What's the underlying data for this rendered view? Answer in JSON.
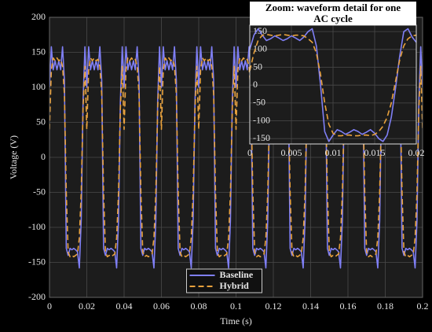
{
  "chart_data": [
    {
      "type": "line",
      "xlabel": "Time (s)",
      "ylabel": "Voltage (V)",
      "xlim": [
        0,
        0.2
      ],
      "ylim": [
        -200,
        200
      ],
      "xticks": [
        0,
        0.02,
        0.04,
        0.06,
        0.08,
        0.1,
        0.12,
        0.14,
        0.16,
        0.18,
        0.2
      ],
      "yticks": [
        -200,
        -150,
        -100,
        -50,
        0,
        50,
        100,
        150,
        200
      ],
      "grid": true,
      "legend": "lower center",
      "x": [
        0,
        0.001,
        0.002,
        0.003,
        0.004,
        0.005,
        0.006,
        0.007,
        0.008,
        0.009,
        0.01,
        0.011,
        0.012,
        0.013,
        0.014,
        0.015,
        0.016,
        0.017,
        0.018,
        0.019,
        0.02,
        0.021,
        0.022,
        0.023,
        0.024,
        0.025,
        0.026,
        0.027,
        0.028,
        0.029,
        0.03,
        0.031,
        0.032,
        0.033,
        0.034,
        0.035,
        0.036,
        0.037,
        0.038,
        0.039,
        0.04,
        0.041,
        0.042,
        0.043,
        0.044,
        0.045,
        0.046,
        0.047,
        0.048,
        0.049,
        0.05,
        0.051,
        0.052,
        0.053,
        0.054,
        0.055,
        0.056,
        0.057,
        0.058,
        0.059,
        0.06,
        0.061,
        0.062,
        0.063,
        0.064,
        0.065,
        0.066,
        0.067,
        0.068,
        0.069,
        0.07,
        0.071,
        0.072,
        0.073,
        0.074,
        0.075,
        0.076,
        0.077,
        0.078,
        0.079,
        0.08,
        0.081,
        0.082,
        0.083,
        0.084,
        0.085,
        0.086,
        0.087,
        0.088,
        0.089,
        0.09,
        0.091,
        0.092,
        0.093,
        0.094,
        0.095,
        0.096,
        0.097,
        0.098,
        0.099,
        0.1,
        0.101,
        0.102,
        0.103,
        0.104,
        0.105,
        0.106,
        0.107,
        0.108,
        0.109,
        0.11,
        0.111,
        0.112,
        0.113,
        0.114,
        0.115,
        0.116,
        0.117,
        0.118,
        0.119,
        0.12,
        0.121,
        0.122,
        0.123,
        0.124,
        0.125,
        0.126,
        0.127,
        0.128,
        0.129,
        0.13,
        0.131,
        0.132,
        0.133,
        0.134,
        0.135,
        0.136,
        0.137,
        0.138,
        0.139,
        0.14,
        0.141,
        0.142,
        0.143,
        0.144,
        0.145,
        0.146,
        0.147,
        0.148,
        0.149,
        0.15,
        0.151,
        0.152,
        0.153,
        0.154,
        0.155,
        0.156,
        0.157,
        0.158,
        0.159,
        0.16,
        0.161,
        0.162,
        0.163,
        0.164,
        0.165,
        0.166,
        0.167,
        0.168,
        0.169,
        0.17,
        0.171,
        0.172,
        0.173,
        0.174,
        0.175,
        0.176,
        0.177,
        0.178,
        0.179,
        0.18,
        0.181,
        0.182,
        0.183,
        0.184,
        0.185,
        0.186,
        0.187,
        0.188,
        0.189,
        0.19,
        0.191,
        0.192,
        0.193,
        0.194,
        0.195,
        0.196,
        0.197,
        0.198,
        0.199,
        0.2
      ],
      "series": [
        {
          "name": "Baseline",
          "color": "#7f7ff5",
          "dash": false,
          "values": [
            100,
            158,
            125,
            138,
            125,
            138,
            125,
            158,
            110,
            -130,
            -140,
            -130,
            -132,
            -130,
            -132,
            -135,
            -158,
            -90,
            80,
            158,
            100,
            158,
            125,
            138,
            125,
            138,
            125,
            158,
            110,
            -130,
            -140,
            -130,
            -132,
            -130,
            -132,
            -135,
            -158,
            -90,
            80,
            158,
            100,
            158,
            125,
            138,
            125,
            138,
            125,
            158,
            110,
            -130,
            -140,
            -130,
            -132,
            -130,
            -132,
            -135,
            -158,
            -90,
            80,
            158,
            100,
            158,
            125,
            138,
            125,
            138,
            125,
            158,
            110,
            -130,
            -140,
            -130,
            -132,
            -130,
            -132,
            -135,
            -158,
            -90,
            80,
            158,
            100,
            158,
            125,
            138,
            125,
            138,
            125,
            158,
            110,
            -130,
            -140,
            -130,
            -132,
            -130,
            -132,
            -135,
            -158,
            -90,
            80,
            158,
            100,
            158,
            125,
            138,
            125,
            138,
            125,
            158,
            110,
            -130,
            -140,
            -130,
            -132,
            -130,
            -132,
            -135,
            -158,
            -90,
            80,
            158,
            100,
            158,
            125,
            138,
            125,
            138,
            125,
            158,
            110,
            -130,
            -140,
            -130,
            -132,
            -130,
            -132,
            -135,
            -158,
            -90,
            80,
            158,
            100,
            158,
            125,
            138,
            125,
            138,
            125,
            158,
            110,
            -130,
            -140,
            -130,
            -132,
            -130,
            -132,
            -135,
            -158,
            -90,
            80,
            158,
            100,
            158,
            125,
            138,
            125,
            138,
            125,
            158,
            110,
            -130,
            -140,
            -130,
            -132,
            -130,
            -132,
            -135,
            -158,
            -90,
            80,
            158,
            100,
            158,
            125,
            138,
            125,
            138,
            125,
            158,
            110,
            -130,
            -140,
            -130,
            -132,
            -130,
            -132,
            -135,
            -158,
            -90,
            80,
            158,
            100
          ]
        },
        {
          "name": "Hybrid",
          "color": "#e8a13c",
          "dash": true,
          "values": [
            40,
            125,
            142,
            138,
            142,
            138,
            140,
            130,
            90,
            -50,
            -135,
            -142,
            -140,
            -142,
            -140,
            -138,
            -115,
            -50,
            70,
            130,
            40,
            125,
            142,
            138,
            142,
            138,
            140,
            130,
            90,
            -50,
            -135,
            -142,
            -140,
            -142,
            -140,
            -138,
            -115,
            -50,
            70,
            130,
            40,
            125,
            142,
            138,
            142,
            138,
            140,
            130,
            90,
            -50,
            -135,
            -142,
            -140,
            -142,
            -140,
            -138,
            -115,
            -50,
            70,
            130,
            40,
            125,
            142,
            138,
            142,
            138,
            140,
            130,
            90,
            -50,
            -135,
            -142,
            -140,
            -142,
            -140,
            -138,
            -115,
            -50,
            70,
            130,
            40,
            125,
            142,
            138,
            142,
            138,
            140,
            130,
            90,
            -50,
            -135,
            -142,
            -140,
            -142,
            -140,
            -138,
            -115,
            -50,
            70,
            130,
            40,
            125,
            142,
            138,
            142,
            138,
            140,
            130,
            90,
            -50,
            -135,
            -142,
            -140,
            -142,
            -140,
            -138,
            -115,
            -50,
            70,
            130,
            40,
            125,
            142,
            138,
            142,
            138,
            140,
            130,
            90,
            -50,
            -135,
            -142,
            -140,
            -142,
            -140,
            -138,
            -115,
            -50,
            70,
            130,
            40,
            125,
            142,
            138,
            142,
            138,
            140,
            130,
            90,
            -50,
            -135,
            -142,
            -140,
            -142,
            -140,
            -138,
            -115,
            -50,
            70,
            130,
            40,
            125,
            142,
            138,
            142,
            138,
            140,
            130,
            90,
            -50,
            -135,
            -142,
            -140,
            -142,
            -140,
            -138,
            -115,
            -50,
            70,
            130,
            40,
            125,
            142,
            138,
            142,
            138,
            140,
            130,
            90,
            -50,
            -135,
            -142,
            -140,
            -142,
            -140,
            -138,
            -115,
            -50,
            70,
            130,
            40
          ]
        }
      ]
    },
    {
      "type": "line",
      "title": "Zoom: waveform detail for one AC cycle",
      "xlim": [
        0,
        0.02
      ],
      "ylim": [
        -165,
        168
      ],
      "xticks": [
        0,
        0.005,
        0.01,
        0.015,
        0.02
      ],
      "yticks": [
        -150,
        -100,
        -50,
        0,
        50,
        100,
        150
      ],
      "grid": true,
      "x": [
        0,
        0.0005,
        0.001,
        0.0015,
        0.002,
        0.0025,
        0.003,
        0.0035,
        0.004,
        0.0045,
        0.005,
        0.0055,
        0.006,
        0.0065,
        0.007,
        0.0075,
        0.008,
        0.0085,
        0.009,
        0.0095,
        0.01,
        0.0105,
        0.011,
        0.0115,
        0.012,
        0.0125,
        0.013,
        0.0135,
        0.014,
        0.0145,
        0.015,
        0.0155,
        0.016,
        0.0165,
        0.017,
        0.0175,
        0.018,
        0.0185,
        0.019,
        0.0195,
        0.02
      ],
      "series": [
        {
          "name": "Baseline",
          "color": "#7f7ff5",
          "dash": false,
          "values": [
            100,
            140,
            158,
            140,
            125,
            130,
            138,
            132,
            125,
            130,
            138,
            132,
            125,
            135,
            150,
            158,
            110,
            0,
            -130,
            -158,
            -140,
            -125,
            -130,
            -138,
            -132,
            -125,
            -130,
            -138,
            -132,
            -125,
            -135,
            -150,
            -158,
            -140,
            -90,
            -10,
            80,
            150,
            158,
            135,
            120
          ]
        },
        {
          "name": "Hybrid",
          "color": "#e8a13c",
          "dash": true,
          "values": [
            40,
            90,
            125,
            140,
            142,
            140,
            138,
            140,
            142,
            140,
            138,
            140,
            140,
            138,
            130,
            120,
            90,
            30,
            -50,
            -110,
            -135,
            -142,
            -142,
            -140,
            -140,
            -142,
            -142,
            -140,
            -140,
            -142,
            -138,
            -130,
            -115,
            -90,
            -50,
            10,
            70,
            110,
            130,
            138,
            140
          ]
        }
      ]
    }
  ]
}
